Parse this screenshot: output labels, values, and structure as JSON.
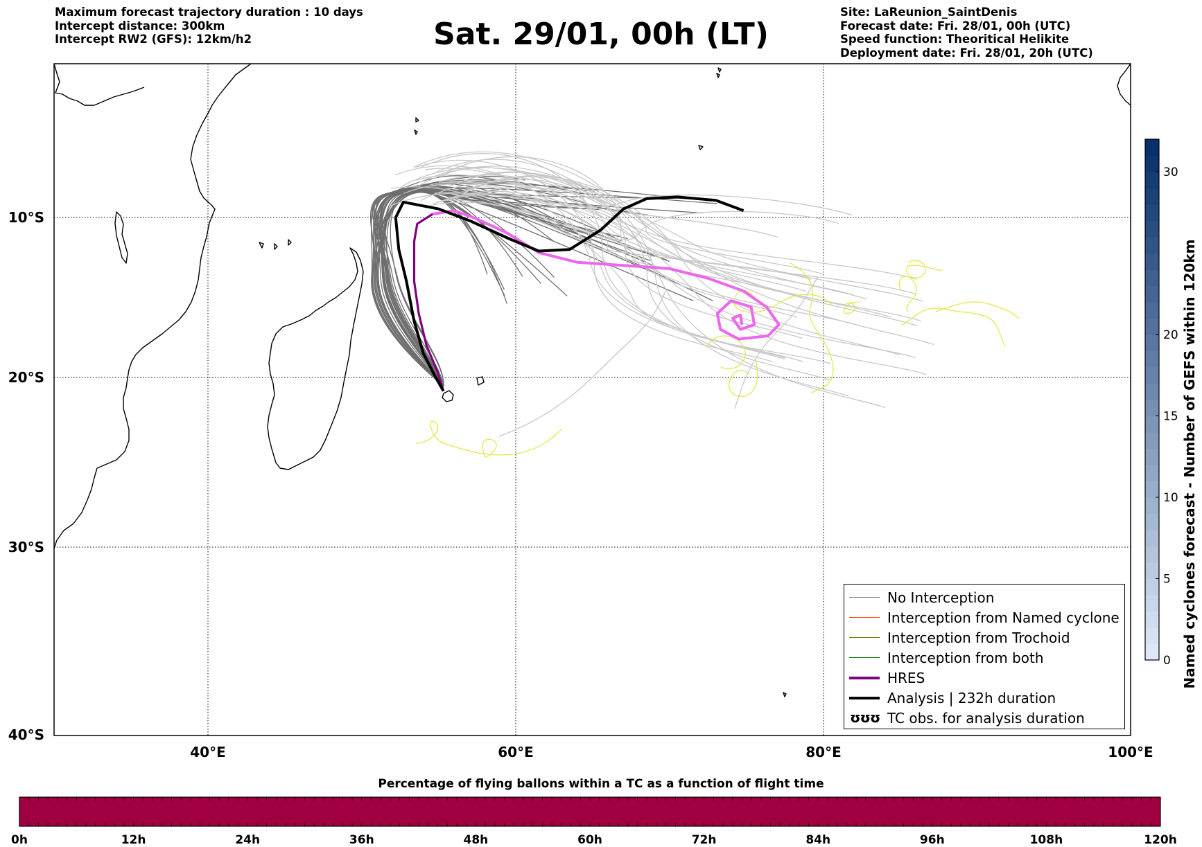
{
  "header_left": [
    "Maximum forecast trajectory duration : 10 days",
    "Intercept distance: 300km",
    "Intercept RW2 (GFS):  12km/h2"
  ],
  "title": "Sat. 29/01, 00h (LT)",
  "header_right": [
    "Site: LaReunion_SaintDenis",
    "Forecast date: Fri. 28/01, 00h (UTC)",
    "Speed function: Theoritical Helikite",
    "Deployment date: Fri. 28/01, 20h (UTC)"
  ],
  "map": {
    "lat_ticks": [
      "10°S",
      "20°S",
      "30°S",
      "40°S"
    ],
    "lon_ticks": [
      "40°E",
      "60°E",
      "80°E",
      "100°E"
    ],
    "lon_range": [
      30,
      100
    ],
    "lat_range": [
      -40,
      -1
    ]
  },
  "legend": [
    {
      "label": "No Interception",
      "color": "#808080",
      "style": "thin"
    },
    {
      "label": "Interception from Named cyclone",
      "color": "#ff4500",
      "style": "thin"
    },
    {
      "label": "Interception from Trochoid",
      "color": "#808000",
      "style": "thin"
    },
    {
      "label": "Interception from both",
      "color": "#008000",
      "style": "thin"
    },
    {
      "label": "HRES",
      "color": "#800080",
      "style": "thick"
    },
    {
      "label": "Analysis | 232h duration",
      "color": "#000000",
      "style": "thick"
    },
    {
      "label": "TC obs. for analysis duration",
      "color": "#000000",
      "style": "symbol",
      "symbol": "ʊʊʊ"
    }
  ],
  "colorbar": {
    "label": "Named cyclones forecast - Number of GEFS within 120km",
    "ticks": [
      "0",
      "5",
      "10",
      "15",
      "20",
      "30"
    ],
    "tick_values": [
      0,
      5,
      10,
      15,
      20,
      30
    ],
    "max": 32,
    "color_low": "#dde8f6",
    "color_high": "#08306b"
  },
  "timebar": {
    "title": "Percentage of flying ballons within a TC as a function of flight time",
    "ticks": [
      "0h",
      "12h",
      "24h",
      "36h",
      "48h",
      "60h",
      "72h",
      "84h",
      "96h",
      "108h",
      "120h"
    ],
    "color": "#a00040"
  },
  "tracks": {
    "analysis": [
      [
        55.3,
        -20.8
      ],
      [
        54.8,
        -20.0
      ],
      [
        54.0,
        -18.5
      ],
      [
        53.4,
        -16.5
      ],
      [
        52.9,
        -14.0
      ],
      [
        52.4,
        -12.0
      ],
      [
        52.2,
        -10.0
      ],
      [
        52.7,
        -9.1
      ],
      [
        55.0,
        -9.5
      ],
      [
        57.0,
        -10.2
      ],
      [
        59.5,
        -11.3
      ],
      [
        61.5,
        -12.1
      ],
      [
        63.5,
        -12.0
      ],
      [
        65.5,
        -10.8
      ],
      [
        67.0,
        -9.5
      ],
      [
        68.5,
        -8.9
      ],
      [
        70.5,
        -8.8
      ],
      [
        73.0,
        -9.0
      ],
      [
        74.8,
        -9.6
      ]
    ],
    "hres": [
      [
        55.3,
        -20.8
      ],
      [
        54.9,
        -19.6
      ],
      [
        54.2,
        -18.0
      ],
      [
        53.7,
        -16.0
      ],
      [
        53.4,
        -14.0
      ],
      [
        53.4,
        -11.5
      ],
      [
        53.6,
        -10.4
      ],
      [
        54.6,
        -9.8
      ],
      [
        56.0,
        -9.6
      ],
      [
        57.5,
        -10.1
      ],
      [
        59.5,
        -11.0
      ],
      [
        61.5,
        -12.2
      ],
      [
        64.0,
        -12.8
      ],
      [
        67.0,
        -13.0
      ],
      [
        70.0,
        -13.2
      ],
      [
        72.5,
        -13.8
      ],
      [
        74.8,
        -14.6
      ],
      [
        76.3,
        -15.6
      ],
      [
        77.1,
        -16.7
      ],
      [
        76.4,
        -17.4
      ],
      [
        74.5,
        -17.6
      ],
      [
        73.3,
        -17.0
      ],
      [
        73.1,
        -16.0
      ],
      [
        74.0,
        -15.2
      ],
      [
        75.3,
        -15.6
      ],
      [
        75.5,
        -16.7
      ],
      [
        74.6,
        -17.0
      ],
      [
        74.1,
        -16.3
      ],
      [
        74.6,
        -16.1
      ],
      [
        74.7,
        -16.7
      ]
    ]
  }
}
